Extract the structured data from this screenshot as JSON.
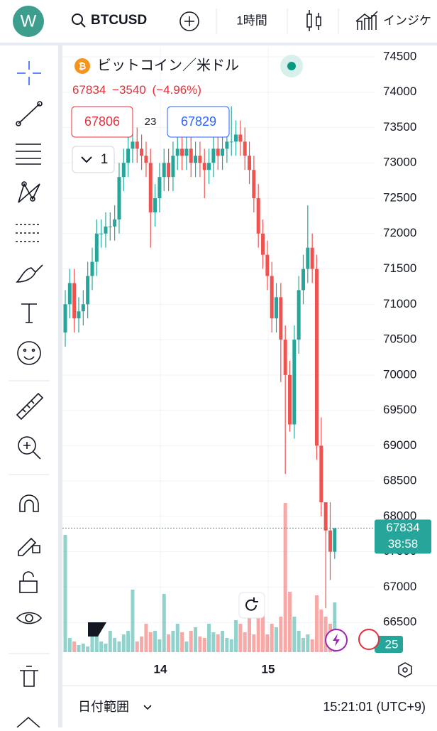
{
  "header": {
    "avatar": "W",
    "symbol": "BTCUSD",
    "interval": "1時間",
    "indicators": "インジケ"
  },
  "legend": {
    "name": "ビットコイン／米ドル",
    "last": "67834",
    "change": "−3540",
    "change_pct": "(−4.96%)",
    "sell": "67806",
    "spread": "23",
    "buy": "67829",
    "layers": "1"
  },
  "chart_data": {
    "type": "candlestick",
    "open": [
      70600,
      71000,
      71300,
      70800,
      70900,
      71000,
      71400,
      71600,
      72000,
      72000,
      72100,
      72100,
      72200,
      72800,
      73000,
      73200,
      73300,
      73200,
      73100,
      73000,
      72300,
      72500,
      72800,
      73000,
      72800,
      73100,
      73200,
      73100,
      73200,
      73000,
      73100,
      73000,
      72900,
      73000,
      73200,
      73100,
      73200,
      73300,
      73300,
      73400,
      73300,
      73100,
      72900,
      72500,
      72000,
      71700,
      71400,
      70800,
      71100,
      70500,
      70000,
      69300,
      70500,
      71200,
      71500,
      71800,
      71500,
      69000,
      68200,
      67800,
      67500
    ],
    "high": [
      71200,
      71500,
      71500,
      71100,
      71200,
      71600,
      71800,
      72200,
      72200,
      72300,
      72300,
      72400,
      73000,
      73200,
      73400,
      73500,
      73500,
      73400,
      73300,
      73200,
      72700,
      73000,
      73200,
      73200,
      73300,
      73400,
      73400,
      73400,
      73400,
      73300,
      73300,
      73200,
      73200,
      73400,
      73400,
      73400,
      73500,
      73800,
      73600,
      73600,
      73500,
      73300,
      73100,
      72700,
      72200,
      71900,
      71600,
      71300,
      71300,
      70700,
      70200,
      70700,
      71400,
      71700,
      72400,
      72000,
      71700,
      69400,
      68200,
      68200,
      67834
    ],
    "low": [
      70400,
      70800,
      70600,
      70600,
      70700,
      70800,
      71200,
      71400,
      71800,
      71800,
      71900,
      71900,
      72000,
      72600,
      72800,
      73000,
      73000,
      72900,
      72800,
      71800,
      72100,
      72300,
      72600,
      72600,
      72600,
      72900,
      72900,
      72900,
      72800,
      72800,
      72800,
      72500,
      72700,
      72800,
      72900,
      72900,
      73000,
      73100,
      73100,
      73100,
      72900,
      72700,
      72300,
      71800,
      71500,
      71200,
      70600,
      70600,
      69900,
      68600,
      69200,
      69100,
      70300,
      71000,
      71300,
      71300,
      68800,
      68000,
      66700,
      67100,
      67400
    ],
    "close": [
      71000,
      71300,
      70800,
      70900,
      71000,
      71400,
      71600,
      72000,
      72000,
      72100,
      72100,
      72200,
      72800,
      73000,
      73200,
      73300,
      73200,
      73100,
      73000,
      72300,
      72500,
      72800,
      73000,
      72800,
      73100,
      73200,
      73100,
      73200,
      73000,
      73100,
      73000,
      72900,
      73000,
      73200,
      73100,
      73200,
      73300,
      73300,
      73400,
      73300,
      73100,
      72900,
      72500,
      72000,
      71700,
      71400,
      70800,
      71100,
      70500,
      70000,
      69300,
      70500,
      71200,
      71500,
      71800,
      71500,
      69000,
      68200,
      67800,
      67500,
      67834
    ],
    "volume": [
      165,
      20,
      15,
      10,
      12,
      8,
      30,
      25,
      15,
      12,
      30,
      20,
      15,
      25,
      30,
      88,
      15,
      22,
      40,
      28,
      30,
      18,
      82,
      25,
      30,
      40,
      28,
      15,
      30,
      35,
      22,
      20,
      40,
      28,
      25,
      30,
      20,
      18,
      45,
      40,
      28,
      50,
      25,
      80,
      60,
      25,
      40,
      35,
      50,
      210,
      85,
      50,
      30,
      20,
      25,
      18,
      80,
      60,
      50,
      40,
      70
    ],
    "up_color": "#26a69a",
    "down_color": "#ef5350",
    "ylim": [
      66080,
      74650
    ],
    "yticks": [
      66500,
      67000,
      67500,
      68000,
      68500,
      69000,
      69500,
      70000,
      70500,
      71000,
      71500,
      72000,
      72500,
      73000,
      73500,
      74000,
      74500
    ],
    "last_price": 67834,
    "countdown": "38:58",
    "volume_badge": "25",
    "date_labels": [
      "14",
      "15"
    ]
  },
  "footer": {
    "range": "日付範囲",
    "clock": "15:21:01 (UTC+9)"
  }
}
